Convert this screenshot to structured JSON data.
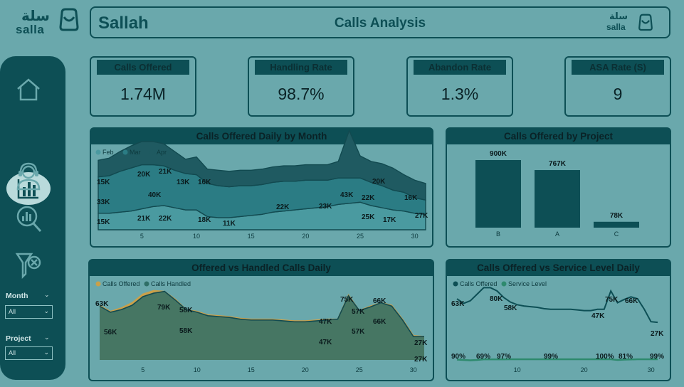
{
  "brand": {
    "logo_ar": "سلة",
    "logo_en": "salla",
    "name": "Sallah",
    "page_title": "Calls Analysis"
  },
  "sidebar": {
    "items": [
      {
        "icon": "home-icon",
        "label": "Home"
      },
      {
        "icon": "bar-chart-icon",
        "label": "Calls Overview"
      },
      {
        "icon": "agent-headset-icon",
        "label": "Agents"
      },
      {
        "icon": "analysis-magnifier-icon",
        "label": "Analysis"
      },
      {
        "icon": "clear-filter-icon",
        "label": "Clear Filters"
      }
    ],
    "filters": [
      {
        "label": "Month",
        "value": "All"
      },
      {
        "label": "Project",
        "value": "All"
      }
    ]
  },
  "kpis": [
    {
      "label": "Calls Offered",
      "value": "1.74M"
    },
    {
      "label": "Handling Rate",
      "value": "98.7%"
    },
    {
      "label": "Abandon Rate",
      "value": "1.3%"
    },
    {
      "label": "ASA Rate (S)",
      "value": "9"
    }
  ],
  "colors": {
    "background": "#6aa8ac",
    "dark": "#0d4f55",
    "feb": "#4a9aa0",
    "mar": "#2b7c84",
    "apr": "#1f5a61",
    "offered": "#c9a04a",
    "handled": "#2f6f67",
    "service": "#2e8a6e"
  },
  "chart_data": [
    {
      "type": "area",
      "title": "Calls Offered Daily by Month",
      "legend": [
        "Feb",
        "Mar",
        "Apr"
      ],
      "x_ticks": [
        "5",
        "10",
        "15",
        "20",
        "25",
        "30"
      ],
      "xlim": [
        1,
        31
      ],
      "series": [
        {
          "name": "Feb",
          "x": [
            1,
            2,
            3,
            4,
            5,
            6,
            7,
            8,
            9,
            10,
            11,
            12,
            13,
            14,
            15,
            16,
            17,
            18,
            19,
            20,
            21,
            22,
            23,
            24,
            25,
            26,
            27,
            28,
            29,
            30,
            31
          ],
          "values": [
            15,
            15,
            16,
            17,
            19,
            21,
            22,
            20,
            18,
            18,
            12,
            11,
            11,
            12,
            13,
            14,
            16,
            17,
            18,
            19,
            20,
            21,
            23,
            24,
            25,
            22,
            20,
            18,
            17,
            15,
            14
          ]
        },
        {
          "name": "Mar",
          "x": [
            1,
            2,
            3,
            4,
            5,
            6,
            7,
            8,
            9,
            10,
            11,
            12,
            13,
            14,
            15,
            16,
            17,
            18,
            19,
            20,
            21,
            22,
            23,
            24,
            25,
            26,
            27,
            28,
            29,
            30,
            31
          ],
          "values": [
            33,
            34,
            37,
            39,
            40,
            38,
            36,
            34,
            33,
            32,
            30,
            29,
            28,
            28,
            27,
            27,
            27,
            27,
            26,
            26,
            25,
            24,
            24,
            23,
            22,
            21,
            20,
            18,
            17,
            14,
            13
          ]
        },
        {
          "name": "Apr",
          "x": [
            1,
            2,
            3,
            4,
            5,
            6,
            7,
            8,
            9,
            10,
            11,
            12,
            13,
            14,
            15,
            16,
            17,
            18,
            19,
            20,
            21,
            22,
            23,
            24,
            25,
            26,
            27,
            28,
            29,
            30,
            31
          ],
          "values": [
            15,
            16,
            18,
            20,
            21,
            21,
            20,
            17,
            13,
            16,
            13,
            14,
            14,
            14,
            14,
            14,
            14,
            14,
            14,
            14,
            14,
            14,
            15,
            43,
            20,
            19,
            20,
            20,
            16,
            16,
            15
          ]
        }
      ],
      "labels": [
        "15K",
        "20K",
        "21K",
        "13K",
        "16K",
        "33K",
        "40K",
        "15K",
        "21K",
        "22K",
        "18K",
        "11K",
        "22K",
        "23K",
        "43K",
        "20K",
        "22K",
        "16K",
        "25K",
        "17K",
        "27K"
      ]
    },
    {
      "type": "bar",
      "title": "Calls Offered by Project",
      "categories": [
        "B",
        "A",
        "C"
      ],
      "values": [
        900,
        767,
        78
      ],
      "value_labels": [
        "900K",
        "767K",
        "78K"
      ],
      "unit": "K"
    },
    {
      "type": "area",
      "title": "Offered vs Handled Calls Daily",
      "legend": [
        "Calls Offered",
        "Calls Handled"
      ],
      "x_ticks": [
        "5",
        "10",
        "15",
        "20",
        "25",
        "30"
      ],
      "xlim": [
        1,
        31
      ],
      "series": [
        {
          "name": "Calls Offered",
          "x": [
            1,
            2,
            3,
            4,
            5,
            6,
            7,
            8,
            9,
            10,
            11,
            12,
            13,
            14,
            15,
            16,
            17,
            18,
            19,
            20,
            21,
            22,
            23,
            24,
            25,
            26,
            27,
            28,
            29,
            30,
            31
          ],
          "values": [
            63,
            56,
            60,
            66,
            76,
            80,
            79,
            70,
            58,
            56,
            52,
            51,
            50,
            48,
            47,
            47,
            47,
            46,
            45,
            45,
            46,
            47,
            47,
            75,
            57,
            62,
            66,
            63,
            47,
            28,
            27
          ]
        },
        {
          "name": "Calls Handled",
          "x": [
            1,
            2,
            3,
            4,
            5,
            6,
            7,
            8,
            9,
            10,
            11,
            12,
            13,
            14,
            15,
            16,
            17,
            18,
            19,
            20,
            21,
            22,
            23,
            24,
            25,
            26,
            27,
            28,
            29,
            30,
            31
          ],
          "values": [
            62,
            55,
            58,
            63,
            73,
            77,
            79,
            69,
            58,
            55,
            51,
            50,
            49,
            47,
            46,
            46,
            46,
            45,
            44,
            44,
            45,
            46,
            47,
            74,
            57,
            61,
            66,
            62,
            46,
            27,
            27
          ]
        }
      ],
      "labels": [
        "63K",
        "56K",
        "79K",
        "58K",
        "58K",
        "47K",
        "47K",
        "75K",
        "57K",
        "57K",
        "66K",
        "66K",
        "27K",
        "27K"
      ]
    },
    {
      "type": "line",
      "title": "Calls Offered vs Service Level Daily",
      "legend": [
        "Calls Offered",
        "Service Level"
      ],
      "x_ticks": [
        "10",
        "20",
        "30"
      ],
      "xlim": [
        1,
        31
      ],
      "series": [
        {
          "name": "Calls Offered",
          "x": [
            1,
            2,
            3,
            4,
            5,
            6,
            7,
            8,
            9,
            10,
            11,
            12,
            13,
            14,
            15,
            16,
            17,
            18,
            19,
            20,
            21,
            22,
            23,
            24,
            25,
            26,
            27,
            28,
            29,
            30,
            31
          ],
          "values": [
            63,
            56,
            60,
            70,
            80,
            80,
            75,
            65,
            58,
            54,
            52,
            51,
            50,
            48,
            47,
            47,
            47,
            47,
            46,
            45,
            45,
            47,
            47,
            75,
            57,
            62,
            66,
            63,
            47,
            28,
            27
          ]
        },
        {
          "name": "Service Level",
          "x": [
            1,
            2,
            3,
            4,
            5,
            6,
            7,
            8,
            9,
            10,
            11,
            12,
            13,
            14,
            15,
            16,
            17,
            18,
            19,
            20,
            21,
            22,
            23,
            24,
            25,
            26,
            27,
            28,
            29,
            30,
            31
          ],
          "values": [
            90,
            80,
            69,
            80,
            97,
            97,
            97,
            98,
            99,
            99,
            99,
            99,
            99,
            99,
            99,
            99,
            99,
            99,
            99,
            99,
            99,
            99,
            100,
            100,
            81,
            90,
            95,
            99,
            99,
            99,
            99
          ]
        }
      ],
      "labels": [
        "63K",
        "80K",
        "58K",
        "47K",
        "75K",
        "66K",
        "27K"
      ],
      "service_labels": [
        "90%",
        "69%",
        "97%",
        "99%",
        "100%",
        "81%",
        "99%"
      ]
    }
  ]
}
